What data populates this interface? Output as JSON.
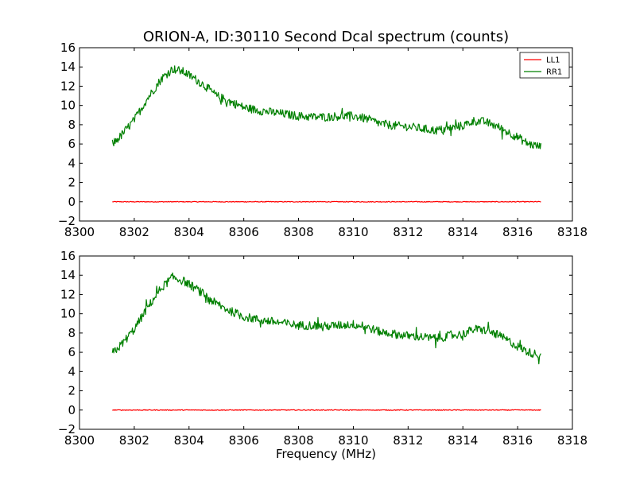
{
  "figure": {
    "title": "ORION-A, ID:30110 Second Dcal spectrum (counts)",
    "xlabel": "Frequency (MHz)"
  },
  "chart_data": [
    {
      "type": "line",
      "title": "ORION-A, ID:30110 Second Dcal spectrum (counts)",
      "xlabel": "",
      "ylabel": "",
      "xlim": [
        8300,
        8318
      ],
      "ylim": [
        -2,
        16
      ],
      "xticks": [
        8300,
        8302,
        8304,
        8306,
        8308,
        8310,
        8312,
        8314,
        8316,
        8318
      ],
      "yticks": [
        -2,
        0,
        2,
        4,
        6,
        8,
        10,
        12,
        14,
        16
      ],
      "grid": false,
      "legend": {
        "placement": "top-right",
        "entries": [
          "LL1",
          "RR1"
        ]
      },
      "series": [
        {
          "name": "LL1",
          "color": "#ff0000",
          "x": [
            8301.2,
            8302,
            8303,
            8304,
            8305,
            8306,
            8307,
            8308,
            8309,
            8310,
            8311,
            8312,
            8313,
            8314,
            8315,
            8316,
            8316.85
          ],
          "y": [
            0,
            0,
            0,
            0,
            0,
            0,
            0,
            0,
            0,
            0,
            0,
            0,
            0,
            0,
            0,
            0,
            0
          ]
        },
        {
          "name": "RR1",
          "color": "#008000",
          "x": [
            8301.2,
            8301.5,
            8302,
            8302.5,
            8303,
            8303.4,
            8303.8,
            8304.2,
            8304.6,
            8305,
            8305.5,
            8306,
            8306.5,
            8307,
            8307.5,
            8308,
            8308.5,
            8309,
            8309.5,
            8310,
            8310.5,
            8311,
            8311.5,
            8312,
            8312.5,
            8313,
            8313.5,
            8314,
            8314.4,
            8314.8,
            8315.2,
            8315.6,
            8316,
            8316.4,
            8316.85
          ],
          "y": [
            6.0,
            6.8,
            8.5,
            10.8,
            12.8,
            13.8,
            13.5,
            12.8,
            12.0,
            11.0,
            10.4,
            9.8,
            9.5,
            9.3,
            9.1,
            8.9,
            8.8,
            8.8,
            8.9,
            8.9,
            8.6,
            8.1,
            7.9,
            7.8,
            7.6,
            7.4,
            7.6,
            7.9,
            8.4,
            8.3,
            7.9,
            7.3,
            6.7,
            6.0,
            5.7
          ]
        }
      ]
    },
    {
      "type": "line",
      "title": "",
      "xlabel": "Frequency (MHz)",
      "ylabel": "",
      "xlim": [
        8300,
        8318
      ],
      "ylim": [
        -2,
        16
      ],
      "xticks": [
        8300,
        8302,
        8304,
        8306,
        8308,
        8310,
        8312,
        8314,
        8316,
        8318
      ],
      "yticks": [
        -2,
        0,
        2,
        4,
        6,
        8,
        10,
        12,
        14,
        16
      ],
      "grid": false,
      "legend": null,
      "series": [
        {
          "name": "LL1",
          "color": "#ff0000",
          "x": [
            8301.2,
            8302,
            8303,
            8304,
            8305,
            8306,
            8307,
            8308,
            8309,
            8310,
            8311,
            8312,
            8313,
            8314,
            8315,
            8316,
            8316.85
          ],
          "y": [
            0,
            0,
            0,
            0,
            0,
            0,
            0,
            0,
            0,
            0,
            0,
            0,
            0,
            0,
            0,
            0,
            0
          ]
        },
        {
          "name": "RR1",
          "color": "#008000",
          "x": [
            8301.2,
            8301.5,
            8302,
            8302.5,
            8303,
            8303.4,
            8303.8,
            8304.2,
            8304.6,
            8305,
            8305.5,
            8306,
            8306.5,
            8307,
            8307.5,
            8308,
            8308.5,
            8309,
            8309.5,
            8310,
            8310.5,
            8311,
            8311.5,
            8312,
            8312.5,
            8313,
            8313.5,
            8314,
            8314.4,
            8314.8,
            8315.2,
            8315.6,
            8316,
            8316.4,
            8316.85
          ],
          "y": [
            5.9,
            6.7,
            8.4,
            10.7,
            12.7,
            13.8,
            13.4,
            12.7,
            11.9,
            11.0,
            10.3,
            9.7,
            9.4,
            9.2,
            9.0,
            8.8,
            8.8,
            8.7,
            8.8,
            8.9,
            8.6,
            8.1,
            7.9,
            7.7,
            7.6,
            7.4,
            7.7,
            7.9,
            8.4,
            8.3,
            7.9,
            7.3,
            6.6,
            6.0,
            5.7
          ]
        }
      ]
    }
  ]
}
